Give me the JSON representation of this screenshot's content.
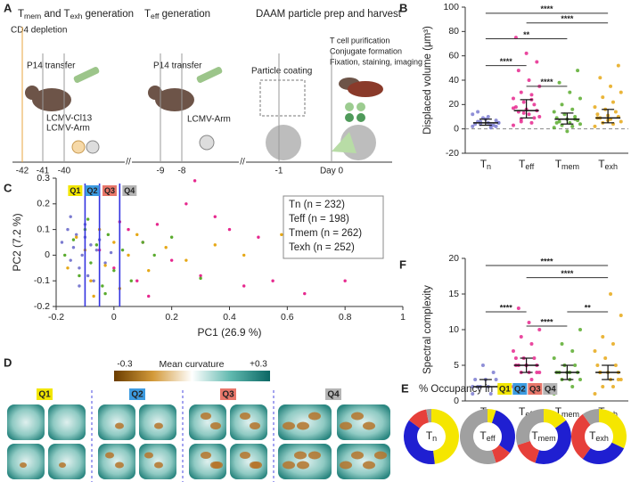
{
  "panel_labels": [
    "A",
    "B",
    "C",
    "D",
    "E",
    "F"
  ],
  "quadrants": [
    {
      "name": "Q1",
      "color": "#f2e600"
    },
    {
      "name": "Q2",
      "color": "#3d9be0"
    },
    {
      "name": "Q3",
      "color": "#e8766a"
    },
    {
      "name": "Q4",
      "color": "#b4b4b4"
    }
  ],
  "timeline": {
    "sections": [
      {
        "title": [
          [
            "T",
            "mem"
          ],
          " and ",
          [
            "T",
            "exh"
          ],
          " generation"
        ],
        "steps": [
          "CD4 depletion",
          "P14 transfer",
          "LCMV-Cl13",
          "LCMV-Arm"
        ]
      },
      {
        "title": [
          [
            "T",
            "eff"
          ],
          " generation"
        ],
        "steps": [
          "P14 transfer",
          "LCMV-Arm"
        ]
      },
      {
        "title": [
          "DAAM particle prep and harvest"
        ],
        "steps": [
          "Particle coating",
          "T cell purification",
          "Conjugate formation",
          "Fixation, staining, imaging"
        ]
      }
    ],
    "days": [
      "-42",
      "-41",
      "-40",
      "-9",
      "-8",
      "-1",
      "Day 0"
    ]
  },
  "curvature": {
    "title": "Mean curvature",
    "min": "-0.3",
    "max": "+0.3"
  },
  "chart_data": [
    {
      "type": "strip",
      "ylabel": "Displaced volume (μm³)",
      "ylim": [
        -20,
        100
      ],
      "yticks": [
        -20,
        0,
        20,
        40,
        60,
        80,
        100
      ],
      "reference_line": 0,
      "categories": [
        [
          "T",
          "n"
        ],
        [
          "T",
          "eff"
        ],
        [
          "T",
          "mem"
        ],
        [
          "T",
          "exh"
        ]
      ],
      "groups": [
        {
          "color": "#7b7bd0",
          "values": [
            2,
            3,
            4,
            5,
            5,
            6,
            7,
            8,
            4,
            3,
            9,
            12,
            1,
            6,
            5,
            10,
            14,
            2
          ],
          "median": 5,
          "q1": 3,
          "q3": 8
        },
        {
          "color": "#e6288e",
          "values": [
            3,
            5,
            8,
            10,
            12,
            14,
            15,
            16,
            18,
            20,
            22,
            25,
            28,
            30,
            35,
            40,
            48,
            55,
            62,
            75,
            9,
            13,
            17,
            24,
            6
          ],
          "median": 15,
          "q1": 9,
          "q3": 24
        },
        {
          "color": "#5aab2e",
          "values": [
            1,
            2,
            3,
            4,
            5,
            6,
            7,
            8,
            9,
            10,
            12,
            14,
            16,
            20,
            25,
            30,
            38,
            48,
            -2,
            5,
            8
          ],
          "median": 8,
          "q1": 4,
          "q3": 13
        },
        {
          "color": "#e6a817",
          "values": [
            2,
            4,
            5,
            6,
            8,
            9,
            10,
            11,
            12,
            14,
            16,
            18,
            22,
            26,
            30,
            35,
            42,
            52,
            7,
            9
          ],
          "median": 9,
          "q1": 5,
          "q3": 16
        }
      ],
      "comparisons": [
        {
          "pair": [
            0,
            3
          ],
          "y": 95,
          "label": "****"
        },
        {
          "pair": [
            1,
            3
          ],
          "y": 87,
          "label": "****"
        },
        {
          "pair": [
            0,
            2
          ],
          "y": 74,
          "label": "**"
        },
        {
          "pair": [
            0,
            1
          ],
          "y": 52,
          "label": "****"
        },
        {
          "pair": [
            1,
            2
          ],
          "y": 35,
          "label": "****"
        }
      ]
    },
    {
      "type": "scatter",
      "xlabel": "PC1 (26.9 %)",
      "ylabel": "PC2 (7.2 %)",
      "xlim": [
        -0.2,
        1
      ],
      "ylim": [
        -0.2,
        0.3
      ],
      "xticks": [
        -0.2,
        0,
        0.2,
        0.4,
        0.6,
        0.8,
        1
      ],
      "yticks": [
        -0.2,
        -0.1,
        0,
        0.1,
        0.2,
        0.3
      ],
      "quadrant_bounds": [
        -0.1,
        -0.05,
        0.02
      ],
      "series": [
        {
          "name": "Tn (n = 232)",
          "color": "#7b7bd0",
          "x": [
            -0.18,
            -0.16,
            -0.15,
            -0.14,
            -0.13,
            -0.12,
            -0.11,
            -0.1,
            -0.09,
            -0.08,
            -0.07,
            -0.06,
            -0.05,
            -0.03,
            -0.01,
            -0.15,
            -0.12,
            -0.1
          ],
          "y": [
            0.05,
            0.1,
            -0.02,
            0.03,
            0.08,
            -0.05,
            0.0,
            0.12,
            -0.08,
            0.04,
            -0.1,
            0.02,
            0.06,
            -0.03,
            0.01,
            0.15,
            -0.12,
            0.07
          ]
        },
        {
          "name": "Teff (n = 198)",
          "color": "#e6288e",
          "x": [
            -0.05,
            0.0,
            0.05,
            0.08,
            0.1,
            0.15,
            0.2,
            0.25,
            0.3,
            0.35,
            0.4,
            0.45,
            0.5,
            0.55,
            0.6,
            0.66,
            0.8,
            0.28,
            0.12,
            0.02
          ],
          "y": [
            0.02,
            -0.05,
            0.1,
            -0.1,
            0.05,
            0.12,
            -0.02,
            0.2,
            -0.08,
            0.15,
            0.1,
            -0.12,
            0.07,
            -0.1,
            0.0,
            -0.15,
            -0.1,
            0.29,
            -0.16,
            0.13
          ]
        },
        {
          "name": "Tmem (n = 262)",
          "color": "#5aab2e",
          "x": [
            -0.17,
            -0.14,
            -0.12,
            -0.1,
            -0.08,
            -0.06,
            -0.04,
            -0.02,
            0.0,
            0.03,
            0.06,
            0.1,
            0.14,
            0.2,
            0.3,
            -0.09,
            -0.03
          ],
          "y": [
            0.0,
            0.06,
            -0.08,
            0.1,
            -0.03,
            0.04,
            -0.12,
            0.08,
            -0.06,
            0.02,
            -0.1,
            0.05,
            0.0,
            0.07,
            -0.09,
            0.14,
            -0.15
          ]
        },
        {
          "name": "Texh (n = 252)",
          "color": "#e6a817",
          "x": [
            -0.16,
            -0.13,
            -0.1,
            -0.08,
            -0.05,
            -0.03,
            0.0,
            0.02,
            0.05,
            0.08,
            0.12,
            0.18,
            0.25,
            0.35,
            0.45,
            0.58,
            -0.07
          ],
          "y": [
            -0.05,
            0.07,
            0.02,
            -0.1,
            0.1,
            -0.04,
            0.05,
            -0.13,
            0.0,
            0.08,
            -0.06,
            0.03,
            -0.02,
            0.04,
            0.0,
            0.08,
            -0.16
          ]
        }
      ]
    },
    {
      "type": "strip",
      "ylabel": "Spectral complexity",
      "ylim": [
        0,
        20
      ],
      "yticks": [
        0,
        5,
        10,
        15,
        20
      ],
      "categories": [
        [
          "T",
          "n"
        ],
        [
          "T",
          "eff"
        ],
        [
          "T",
          "mem"
        ],
        [
          "T",
          "exh"
        ]
      ],
      "groups": [
        {
          "color": "#7b7bd0",
          "values": [
            1,
            1,
            2,
            2,
            2,
            2,
            3,
            3,
            3,
            4,
            5,
            2
          ],
          "median": 2,
          "q1": 2,
          "q3": 3
        },
        {
          "color": "#e6288e",
          "values": [
            2,
            3,
            4,
            4,
            4,
            5,
            5,
            5,
            5,
            6,
            6,
            7,
            8,
            9,
            10,
            11,
            13,
            4,
            5,
            6
          ],
          "median": 5,
          "q1": 4,
          "q3": 6
        },
        {
          "color": "#5aab2e",
          "values": [
            1,
            2,
            3,
            3,
            3,
            4,
            4,
            4,
            4,
            5,
            5,
            6,
            7,
            8,
            10,
            4
          ],
          "median": 4,
          "q1": 3,
          "q3": 5
        },
        {
          "color": "#e6a817",
          "values": [
            1,
            2,
            2,
            3,
            3,
            4,
            4,
            4,
            5,
            5,
            6,
            7,
            8,
            9,
            12,
            15,
            4,
            3
          ],
          "median": 4,
          "q1": 3,
          "q3": 5
        }
      ],
      "comparisons": [
        {
          "pair": [
            0,
            3
          ],
          "y": 19,
          "label": "****"
        },
        {
          "pair": [
            1,
            3
          ],
          "y": 17.3,
          "label": "****"
        },
        {
          "pair": [
            0,
            1
          ],
          "y": 12.5,
          "label": "****"
        },
        {
          "pair": [
            2,
            3
          ],
          "y": 12.5,
          "label": "**"
        },
        {
          "pair": [
            1,
            2
          ],
          "y": 10.5,
          "label": "****"
        }
      ]
    },
    {
      "type": "donut",
      "title": "% Occupancy in ",
      "colors": [
        "#f5e600",
        "#1f1fd1",
        "#e6403a",
        "#a0a0a0"
      ],
      "series": [
        {
          "name": [
            "T",
            "n"
          ],
          "values": [
            48,
            37,
            12,
            3
          ]
        },
        {
          "name": [
            "T",
            "eff"
          ],
          "values": [
            5,
            30,
            10,
            55
          ]
        },
        {
          "name": [
            "T",
            "mem"
          ],
          "values": [
            15,
            40,
            15,
            30
          ]
        },
        {
          "name": [
            "T",
            "exh"
          ],
          "values": [
            32,
            28,
            30,
            10
          ]
        }
      ]
    }
  ]
}
